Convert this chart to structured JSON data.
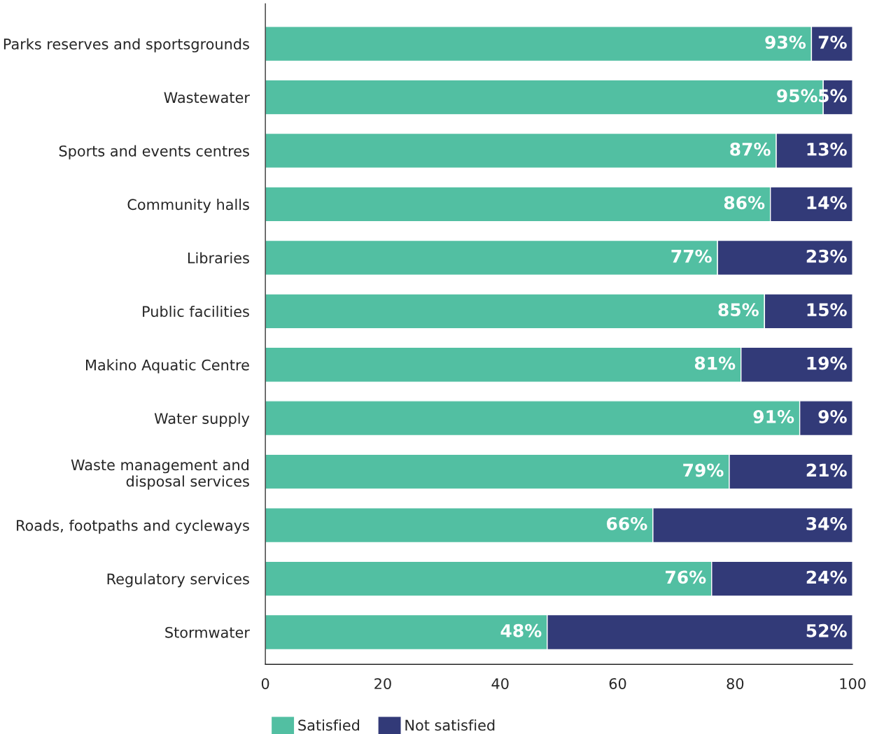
{
  "chart_data": {
    "type": "bar",
    "orientation": "horizontal",
    "stacked": true,
    "categories": [
      "Parks reserves and sportsgrounds",
      "Wastewater",
      "Sports and events centres",
      "Community halls",
      "Libraries",
      "Public facilities",
      "Makino Aquatic Centre",
      "Water supply",
      "Waste management and\ndisposal services",
      "Roads, footpaths and cycleways",
      "Regulatory services",
      "Stormwater"
    ],
    "series": [
      {
        "name": "Satisfied",
        "color": "#52bfa2",
        "values": [
          93,
          95,
          87,
          86,
          77,
          85,
          81,
          91,
          79,
          66,
          76,
          48
        ],
        "value_labels": [
          "93%",
          "95%",
          "87%",
          "86%",
          "77%",
          "85%",
          "81%",
          "91%",
          "79%",
          "66%",
          "76%",
          "48%"
        ]
      },
      {
        "name": "Not satisfied",
        "color": "#323a78",
        "values": [
          7,
          5,
          13,
          14,
          23,
          15,
          19,
          9,
          21,
          34,
          24,
          52
        ],
        "value_labels": [
          "7%",
          "5%",
          "13%",
          "14%",
          "23%",
          "15%",
          "19%",
          "9%",
          "21%",
          "34%",
          "24%",
          "52%"
        ]
      }
    ],
    "xlim": [
      0,
      100
    ],
    "xticks": [
      0,
      20,
      40,
      60,
      80,
      100
    ],
    "grid": false,
    "legend": "bottom left"
  }
}
